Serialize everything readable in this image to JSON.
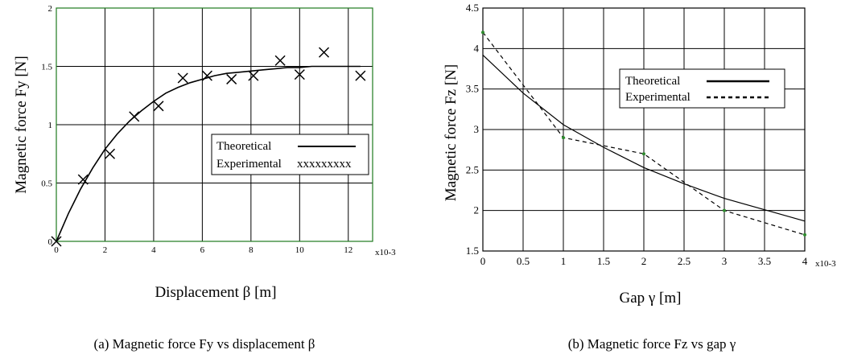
{
  "chart_data": [
    {
      "type": "line",
      "panel": "a",
      "caption": "(a) Magnetic force Fy vs displacement β",
      "xlabel": "Displacement β [m]",
      "ylabel": "Magnetic force Fy [N]",
      "x_multiplier": "x10-3",
      "xlim": [
        0,
        13
      ],
      "ylim": [
        0,
        2
      ],
      "x_ticks": [
        "0",
        "2",
        "4",
        "6",
        "8",
        "10",
        "12"
      ],
      "y_ticks": [
        "0",
        "0.5",
        "1",
        "1.5",
        "2"
      ],
      "grid": true,
      "legend_position": "right",
      "series": [
        {
          "name": "Theoretical",
          "style": "solid-line",
          "x": [
            0,
            0.5,
            1,
            1.5,
            2,
            2.5,
            3,
            3.5,
            4,
            4.5,
            5,
            5.5,
            6,
            6.5,
            7,
            7.5,
            8,
            8.5,
            9,
            9.5,
            10,
            10.5,
            11,
            11.5,
            12,
            12.5
          ],
          "y": [
            0,
            0.24,
            0.45,
            0.63,
            0.79,
            0.92,
            1.03,
            1.12,
            1.2,
            1.27,
            1.32,
            1.36,
            1.39,
            1.42,
            1.44,
            1.45,
            1.46,
            1.47,
            1.48,
            1.49,
            1.49,
            1.5,
            1.5,
            1.5,
            1.5,
            1.5
          ]
        },
        {
          "name": "Experimental",
          "legend_marker": "xxxxxxxxx",
          "style": "x-markers",
          "x": [
            0,
            1.1,
            2.2,
            3.2,
            4.2,
            5.2,
            6.2,
            7.2,
            8.1,
            9.2,
            10.0,
            11.0,
            12.5
          ],
          "y": [
            0,
            0.53,
            0.75,
            1.07,
            1.16,
            1.4,
            1.42,
            1.39,
            1.42,
            1.55,
            1.43,
            1.62,
            1.42
          ]
        }
      ]
    },
    {
      "type": "line",
      "panel": "b",
      "caption": "(b) Magnetic force Fz vs gap γ",
      "xlabel": "Gap γ [m]",
      "ylabel": "Magnetic force Fz [N]",
      "x_multiplier": "x10-3",
      "xlim": [
        0,
        4
      ],
      "ylim": [
        1.5,
        4.5
      ],
      "x_ticks": [
        "0",
        "0.5",
        "1",
        "1.5",
        "2",
        "2.5",
        "3",
        "3.5",
        "4"
      ],
      "y_ticks": [
        "1.5",
        "2",
        "2.5",
        "3",
        "3.5",
        "4",
        "4.5"
      ],
      "grid": true,
      "legend_position": "top-right",
      "series": [
        {
          "name": "Theoretical",
          "style": "solid-line",
          "x": [
            0,
            0.5,
            1,
            1.5,
            2,
            2.5,
            3,
            3.5,
            4
          ],
          "y": [
            3.92,
            3.45,
            3.06,
            2.78,
            2.53,
            2.33,
            2.15,
            2.01,
            1.87
          ]
        },
        {
          "name": "Experimental",
          "style": "dashed-line",
          "marker_color": "#2e8b2e",
          "x": [
            0,
            1,
            2,
            3,
            4
          ],
          "y": [
            4.2,
            2.9,
            2.7,
            2.0,
            1.7
          ]
        }
      ]
    }
  ]
}
